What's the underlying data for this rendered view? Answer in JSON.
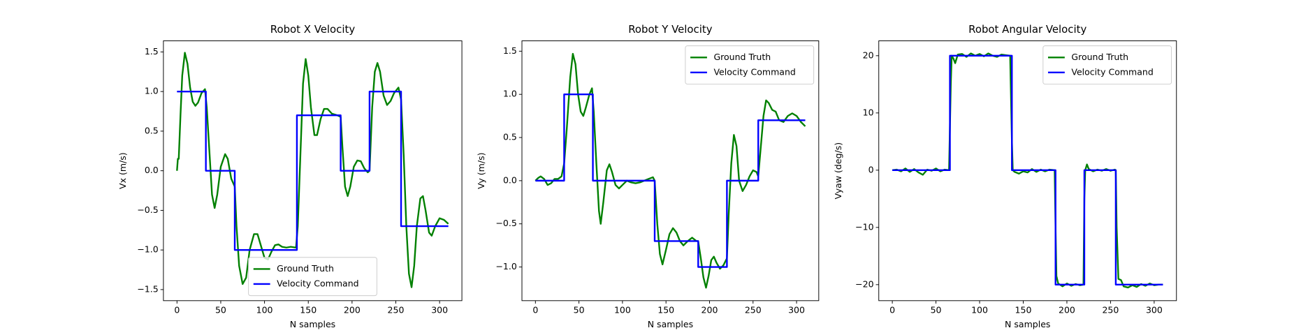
{
  "chart_data": [
    {
      "type": "line",
      "title": "Robot X Velocity",
      "xlabel": "N samples",
      "ylabel": "Vx (m/s)",
      "xlim": [
        -15.5,
        325.5
      ],
      "ylim": [
        -1.64,
        1.64
      ],
      "xticks": [
        0,
        50,
        100,
        150,
        200,
        250,
        300
      ],
      "yticks": [
        {
          "value": -1.5,
          "label": "−1.5"
        },
        {
          "value": -1,
          "label": "−1.0"
        },
        {
          "value": -0.5,
          "label": "−0.5"
        },
        {
          "value": 0,
          "label": "0.0"
        },
        0.5,
        {
          "value": 1,
          "label": "1.0"
        },
        1.5
      ],
      "legend": "lower center",
      "series": [
        {
          "name": "Ground Truth",
          "color": "#008000",
          "x": [
            0,
            1,
            2,
            4,
            6,
            9,
            12,
            15,
            18,
            21,
            24,
            28,
            32,
            34,
            37,
            40,
            43,
            46,
            50,
            55,
            58,
            62,
            64,
            66,
            68,
            71,
            75,
            79,
            83,
            88,
            92,
            96,
            100,
            104,
            108,
            112,
            116,
            120,
            125,
            130,
            136,
            138,
            141,
            144,
            147,
            150,
            153,
            157,
            160,
            164,
            168,
            172,
            177,
            183,
            187,
            189,
            192,
            195,
            198,
            202,
            206,
            210,
            214,
            218,
            220,
            223,
            226,
            229,
            232,
            236,
            240,
            244,
            248,
            253,
            256,
            259,
            262,
            265,
            268,
            271,
            274,
            278,
            281,
            284,
            288,
            291,
            295,
            300,
            305,
            310
          ],
          "values": [
            0,
            0.15,
            0.15,
            0.7,
            1.2,
            1.49,
            1.35,
            1.05,
            0.87,
            0.82,
            0.86,
            0.98,
            1.03,
            0.8,
            0.25,
            -0.3,
            -0.47,
            -0.3,
            0.05,
            0.21,
            0.15,
            -0.1,
            -0.15,
            -0.2,
            -0.7,
            -1.2,
            -1.43,
            -1.35,
            -1.0,
            -0.8,
            -0.8,
            -0.95,
            -1.1,
            -1.12,
            -1.02,
            -0.94,
            -0.93,
            -0.96,
            -0.97,
            -0.96,
            -0.97,
            -0.7,
            0.2,
            1.1,
            1.41,
            1.2,
            0.8,
            0.45,
            0.45,
            0.65,
            0.78,
            0.78,
            0.72,
            0.7,
            0.68,
            0.3,
            -0.2,
            -0.32,
            -0.2,
            0.05,
            0.13,
            0.12,
            0.03,
            -0.02,
            0,
            0.8,
            1.25,
            1.36,
            1.25,
            0.95,
            0.83,
            0.88,
            0.98,
            1.05,
            0.9,
            0.2,
            -0.7,
            -1.3,
            -1.47,
            -1.2,
            -0.7,
            -0.35,
            -0.32,
            -0.5,
            -0.78,
            -0.82,
            -0.7,
            -0.6,
            -0.62,
            -0.67
          ]
        },
        {
          "name": "Velocity Command",
          "color": "#0000ff",
          "x": [
            0,
            33,
            33,
            66,
            66,
            137,
            137,
            187,
            187,
            220,
            220,
            256,
            256,
            310
          ],
          "values": [
            1,
            1,
            0,
            0,
            -1,
            -1,
            0.7,
            0.7,
            0,
            0,
            1,
            1,
            -0.7,
            -0.7
          ]
        }
      ]
    },
    {
      "type": "line",
      "title": "Robot Y Velocity",
      "xlabel": "N samples",
      "ylabel": "Vy (m/s)",
      "xlim": [
        -15.5,
        325.5
      ],
      "ylim": [
        -1.39,
        1.62
      ],
      "xticks": [
        0,
        50,
        100,
        150,
        200,
        250,
        300
      ],
      "yticks": [
        {
          "value": -1,
          "label": "−1.0"
        },
        {
          "value": -0.5,
          "label": "−0.5"
        },
        {
          "value": 0,
          "label": "0.0"
        },
        0.5,
        {
          "value": 1,
          "label": "1.0"
        },
        1.5
      ],
      "legend": "upper right",
      "series": [
        {
          "name": "Ground Truth",
          "color": "#008000",
          "x": [
            0,
            3,
            6,
            10,
            14,
            18,
            22,
            26,
            30,
            33,
            36,
            40,
            43,
            46,
            49,
            52,
            55,
            58,
            62,
            65,
            67,
            70,
            73,
            75,
            78,
            82,
            85,
            88,
            92,
            96,
            100,
            105,
            110,
            115,
            120,
            125,
            130,
            135,
            137,
            140,
            143,
            146,
            150,
            154,
            158,
            162,
            166,
            170,
            175,
            180,
            185,
            187,
            190,
            193,
            196,
            199,
            202,
            205,
            208,
            212,
            216,
            220,
            222,
            225,
            228,
            231,
            234,
            238,
            242,
            246,
            250,
            254,
            256,
            259,
            262,
            265,
            268,
            272,
            276,
            280,
            285,
            290,
            295,
            300,
            305,
            310
          ],
          "values": [
            0,
            0.03,
            0.05,
            0.02,
            -0.05,
            -0.03,
            0.02,
            0.02,
            0.05,
            0.2,
            0.6,
            1.2,
            1.47,
            1.35,
            1.0,
            0.8,
            0.75,
            0.85,
            1.0,
            1.07,
            0.8,
            0.2,
            -0.35,
            -0.5,
            -0.25,
            0.12,
            0.19,
            0.1,
            -0.05,
            -0.09,
            -0.05,
            0,
            -0.02,
            -0.03,
            -0.02,
            0,
            0.02,
            0.04,
            0,
            -0.5,
            -0.85,
            -0.97,
            -0.8,
            -0.62,
            -0.55,
            -0.6,
            -0.7,
            -0.75,
            -0.7,
            -0.66,
            -0.7,
            -0.7,
            -0.9,
            -1.12,
            -1.24,
            -1.1,
            -0.92,
            -0.88,
            -0.95,
            -1.02,
            -0.98,
            -0.9,
            -0.4,
            0.2,
            0.53,
            0.4,
            0,
            -0.12,
            -0.05,
            0.05,
            0.12,
            0.1,
            0.05,
            0.4,
            0.75,
            0.93,
            0.9,
            0.82,
            0.8,
            0.7,
            0.68,
            0.75,
            0.78,
            0.75,
            0.68,
            0.63
          ]
        },
        {
          "name": "Velocity Command",
          "color": "#0000ff",
          "x": [
            0,
            33,
            33,
            66,
            66,
            137,
            137,
            187,
            187,
            220,
            220,
            256,
            256,
            310
          ],
          "values": [
            0,
            0,
            1,
            1,
            0,
            0,
            -0.7,
            -0.7,
            -1,
            -1,
            0,
            0,
            0.7,
            0.7
          ]
        }
      ]
    },
    {
      "type": "line",
      "title": "Robot Angular Velocity",
      "xlabel": "N samples",
      "ylabel": "Vyaw (deg/s)",
      "xlim": [
        -15.5,
        325.5
      ],
      "ylim": [
        -22.8,
        22.6
      ],
      "xticks": [
        0,
        50,
        100,
        150,
        200,
        250,
        300
      ],
      "yticks": [
        {
          "value": -20,
          "label": "−20"
        },
        {
          "value": -10,
          "label": "−10"
        },
        0,
        10,
        20
      ],
      "legend": "upper right",
      "series": [
        {
          "name": "Ground Truth",
          "color": "#008000",
          "x": [
            0,
            5,
            10,
            15,
            20,
            25,
            30,
            35,
            40,
            45,
            50,
            55,
            60,
            65,
            67,
            68,
            70,
            72,
            75,
            80,
            85,
            90,
            95,
            100,
            105,
            110,
            115,
            120,
            125,
            130,
            135,
            137,
            138,
            140,
            145,
            150,
            155,
            160,
            165,
            170,
            175,
            180,
            186,
            187,
            188,
            190,
            195,
            200,
            205,
            210,
            215,
            219,
            220,
            221,
            223,
            225,
            230,
            235,
            240,
            245,
            250,
            255,
            256,
            257,
            259,
            262,
            265,
            270,
            275,
            280,
            285,
            290,
            295,
            300,
            305,
            310
          ],
          "values": [
            0,
            0.1,
            -0.2,
            0.3,
            -0.3,
            0.2,
            -0.4,
            -0.8,
            0.1,
            -0.1,
            0.3,
            -0.2,
            0.1,
            0,
            15,
            20,
            19.5,
            18.7,
            20.2,
            20.3,
            19.8,
            20.4,
            20,
            20.3,
            19.9,
            20.4,
            20,
            19.8,
            20.2,
            20.1,
            20,
            5,
            0,
            -0.3,
            -0.6,
            -0.2,
            -0.4,
            0.2,
            -0.3,
            0.1,
            -0.2,
            0.1,
            0,
            -10,
            -18.5,
            -19.8,
            -20.3,
            -19.8,
            -20.2,
            -19.9,
            -20.1,
            -20,
            -5,
            0,
            1,
            0.2,
            -0.2,
            0.1,
            -0.1,
            0.2,
            -0.1,
            0.1,
            0,
            -10,
            -19,
            -19.2,
            -20.3,
            -20.5,
            -20.1,
            -20.4,
            -19.9,
            -20.2,
            -19.8,
            -20.1,
            -20,
            -20
          ]
        },
        {
          "name": "Velocity Command",
          "color": "#0000ff",
          "x": [
            0,
            66,
            66,
            137,
            137,
            187,
            187,
            220,
            220,
            256,
            256,
            310
          ],
          "values": [
            0,
            0,
            20,
            20,
            0,
            0,
            -20,
            -20,
            0,
            0,
            -20,
            -20
          ]
        }
      ]
    }
  ]
}
